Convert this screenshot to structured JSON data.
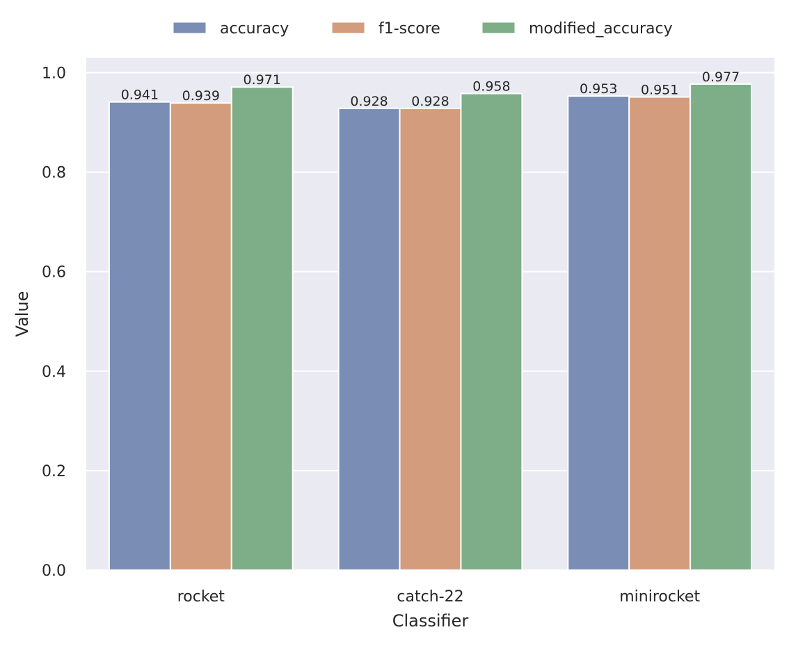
{
  "chart_data": {
    "type": "bar",
    "title": "",
    "xlabel": "Classifier",
    "ylabel": "Value",
    "categories": [
      "rocket",
      "catch-22",
      "minirocket"
    ],
    "series": [
      {
        "name": "accuracy",
        "color": "#7a8db5",
        "values": [
          0.941,
          0.928,
          0.953
        ]
      },
      {
        "name": "f1-score",
        "color": "#d39d7d",
        "values": [
          0.939,
          0.928,
          0.951
        ]
      },
      {
        "name": "modified_accuracy",
        "color": "#7dae88",
        "values": [
          0.971,
          0.958,
          0.977
        ]
      }
    ],
    "ylim": [
      0,
      1.03
    ],
    "yticks": [
      0.0,
      0.2,
      0.4,
      0.6,
      0.8,
      1.0
    ],
    "ytick_labels": [
      "0.0",
      "0.2",
      "0.4",
      "0.6",
      "0.8",
      "1.0"
    ],
    "data_labels": [
      [
        "0.941",
        "0.928",
        "0.953"
      ],
      [
        "0.939",
        "0.928",
        "0.951"
      ],
      [
        "0.971",
        "0.958",
        "0.977"
      ]
    ],
    "grid": true,
    "legend_position": "top-center",
    "background_color": "#eaeaf2"
  }
}
